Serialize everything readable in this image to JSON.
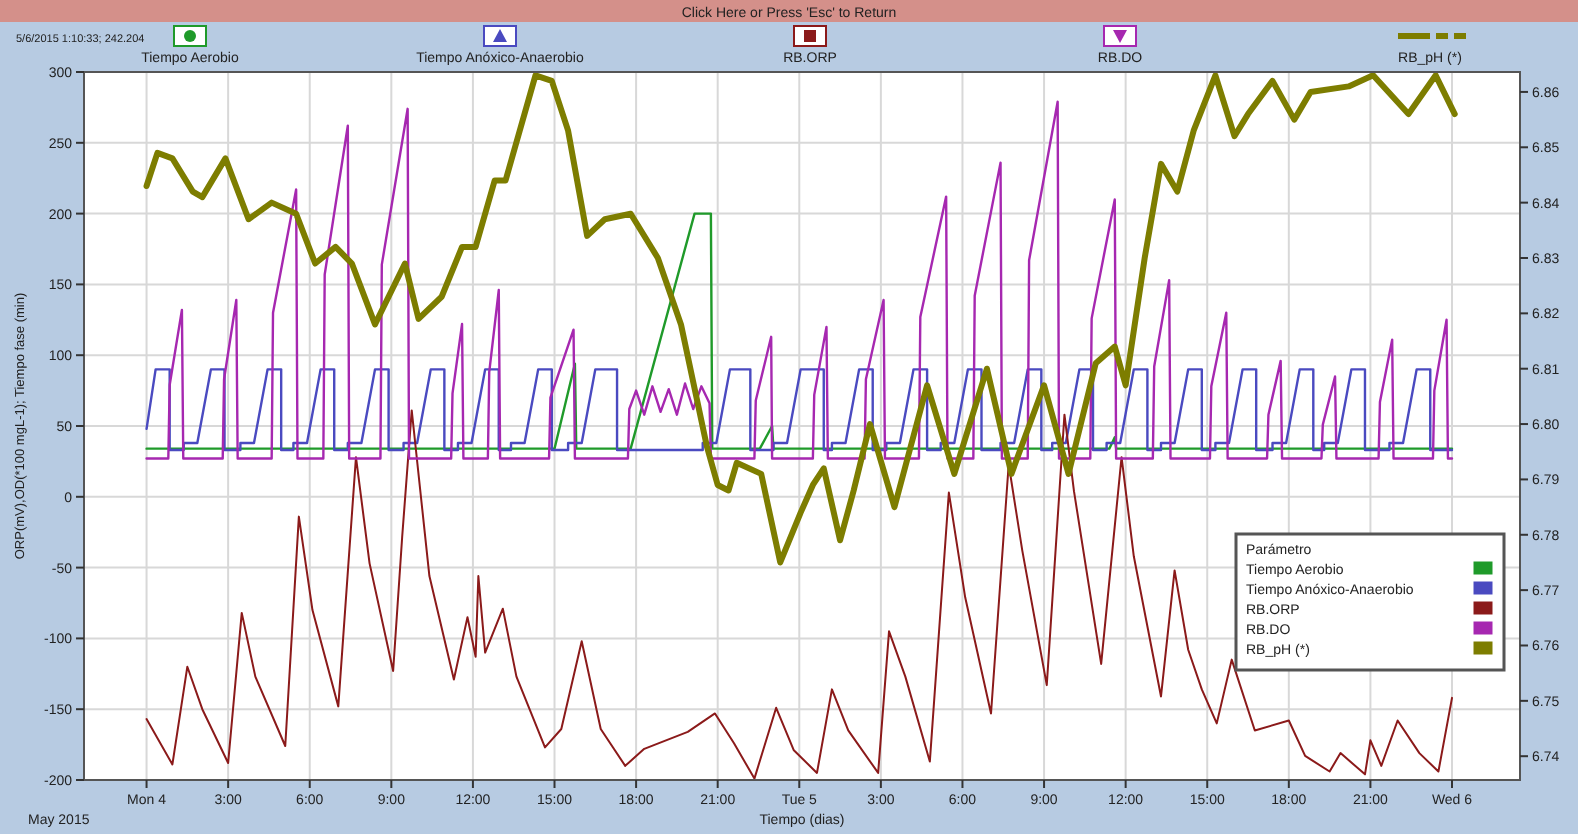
{
  "chart_data": {
    "type": "line",
    "title": "Click Here or Press 'Esc' to Return",
    "xlabel": "Tiempo (dias)",
    "ylabel": "ORP(mV),OD(*100 mgL-1); Tiempo fase (min)",
    "legend_title": "Parámetro",
    "legend": "right",
    "grid": true,
    "annotations": [
      "5/6/2015 1:10:33; 242.204",
      "May 2015"
    ],
    "xlim": [
      "2015-05-03T21:42",
      "2015-05-06T02:30"
    ],
    "xticks": [
      {
        "value": "2015-05-04T00:00",
        "label": "Mon 4"
      },
      {
        "value": "2015-05-04T03:00",
        "label": "3:00"
      },
      {
        "value": "2015-05-04T06:00",
        "label": "6:00"
      },
      {
        "value": "2015-05-04T09:00",
        "label": "9:00"
      },
      {
        "value": "2015-05-04T12:00",
        "label": "12:00"
      },
      {
        "value": "2015-05-04T15:00",
        "label": "15:00"
      },
      {
        "value": "2015-05-04T18:00",
        "label": "18:00"
      },
      {
        "value": "2015-05-04T21:00",
        "label": "21:00"
      },
      {
        "value": "2015-05-05T00:00",
        "label": "Tue 5"
      },
      {
        "value": "2015-05-05T03:00",
        "label": "3:00"
      },
      {
        "value": "2015-05-05T06:00",
        "label": "6:00"
      },
      {
        "value": "2015-05-05T09:00",
        "label": "9:00"
      },
      {
        "value": "2015-05-05T12:00",
        "label": "12:00"
      },
      {
        "value": "2015-05-05T15:00",
        "label": "15:00"
      },
      {
        "value": "2015-05-05T18:00",
        "label": "18:00"
      },
      {
        "value": "2015-05-05T21:00",
        "label": "21:00"
      },
      {
        "value": "2015-05-06T00:00",
        "label": "Wed 6"
      }
    ],
    "ylim": [
      -200,
      300
    ],
    "yticks": [
      -200,
      -150,
      -100,
      -50,
      0,
      50,
      100,
      150,
      200,
      250,
      300
    ],
    "y2lim": [
      6.7357,
      6.8636
    ],
    "y2ticks": [
      6.74,
      6.75,
      6.76,
      6.77,
      6.78,
      6.79,
      {
        "value": 6.8,
        "label": "6.80"
      },
      6.81,
      6.82,
      6.83,
      6.84,
      6.85,
      6.86
    ],
    "series": [
      {
        "name": "Tiempo Aerobio",
        "color": "#1f9a2a",
        "x": [
          "2015-05-04T00:00",
          "2015-05-04T15:00",
          "2015-05-04T15:45",
          "2015-05-04T15:48",
          "2015-05-04T17:48",
          "2015-05-04T20:09",
          "2015-05-04T20:45",
          "2015-05-04T20:48",
          "2015-05-04T22:33",
          "2015-05-04T23:00",
          "2015-05-04T23:03",
          "2015-05-05T11:24",
          "2015-05-05T11:36",
          "2015-05-05T11:39",
          "2015-05-06T00:00"
        ],
        "values": [
          34,
          34,
          94,
          34,
          34,
          200,
          200,
          34,
          34,
          50,
          34,
          34,
          42,
          34,
          34
        ]
      },
      {
        "name": "Tiempo Anóxico-Anaerobio",
        "color": "#4a4ac0",
        "x": [
          "2015-05-04T00:00",
          "2015-05-04T00:20",
          "2015-05-04T00:51",
          "2015-05-04T00:51",
          "2015-05-04T01:22",
          "2015-05-04T01:22",
          "2015-05-04T01:52",
          "2015-05-04T02:22",
          "2015-05-04T02:52",
          "2015-05-04T02:52",
          "2015-05-04T03:27",
          "2015-05-04T03:27",
          "2015-05-04T03:57",
          "2015-05-04T04:27",
          "2015-05-04T04:57",
          "2015-05-04T04:57",
          "2015-05-04T05:24",
          "2015-05-04T05:24",
          "2015-05-04T05:54",
          "2015-05-04T06:24",
          "2015-05-04T06:54",
          "2015-05-04T06:54",
          "2015-05-04T07:24",
          "2015-05-04T07:24",
          "2015-05-04T07:54",
          "2015-05-04T08:24",
          "2015-05-04T08:54",
          "2015-05-04T08:54",
          "2015-05-04T09:27",
          "2015-05-04T09:27",
          "2015-05-04T09:57",
          "2015-05-04T10:27",
          "2015-05-04T10:57",
          "2015-05-04T10:57",
          "2015-05-04T11:27",
          "2015-05-04T11:27",
          "2015-05-04T11:57",
          "2015-05-04T12:27",
          "2015-05-04T12:57",
          "2015-05-04T12:57",
          "2015-05-04T13:24",
          "2015-05-04T13:24",
          "2015-05-04T13:54",
          "2015-05-04T14:24",
          "2015-05-04T14:54",
          "2015-05-04T14:54",
          "2015-05-04T15:30",
          "2015-05-04T15:30",
          "2015-05-04T16:00",
          "2015-05-04T16:30",
          "2015-05-04T17:18",
          "2015-05-04T17:18",
          "2015-05-04T20:27",
          "2015-05-04T20:27",
          "2015-05-04T20:57",
          "2015-05-04T21:27",
          "2015-05-04T22:12",
          "2015-05-04T22:12",
          "2015-05-04T23:03",
          "2015-05-04T23:03",
          "2015-05-04T23:33",
          "2015-05-05T00:03",
          "2015-05-05T00:54",
          "2015-05-05T00:54",
          "2015-05-05T01:12",
          "2015-05-05T01:12",
          "2015-05-05T01:42",
          "2015-05-05T02:12",
          "2015-05-05T02:42",
          "2015-05-05T02:42",
          "2015-05-05T03:12",
          "2015-05-05T03:12",
          "2015-05-05T03:42",
          "2015-05-05T04:12",
          "2015-05-05T04:42",
          "2015-05-05T04:42",
          "2015-05-05T05:12",
          "2015-05-05T05:12",
          "2015-05-05T05:42",
          "2015-05-05T06:12",
          "2015-05-05T06:42",
          "2015-05-05T06:42",
          "2015-05-05T07:24",
          "2015-05-05T07:24",
          "2015-05-05T07:54",
          "2015-05-05T08:24",
          "2015-05-05T08:54",
          "2015-05-05T08:54",
          "2015-05-05T09:18",
          "2015-05-05T09:18",
          "2015-05-05T09:48",
          "2015-05-05T10:18",
          "2015-05-05T10:48",
          "2015-05-05T10:48",
          "2015-05-05T11:18",
          "2015-05-05T11:18",
          "2015-05-05T11:48",
          "2015-05-05T12:18",
          "2015-05-05T12:48",
          "2015-05-05T12:48",
          "2015-05-05T13:18",
          "2015-05-05T13:18",
          "2015-05-05T13:48",
          "2015-05-05T14:18",
          "2015-05-05T14:48",
          "2015-05-05T14:48",
          "2015-05-05T15:18",
          "2015-05-05T15:18",
          "2015-05-05T15:48",
          "2015-05-05T16:18",
          "2015-05-05T16:48",
          "2015-05-05T16:48",
          "2015-05-05T17:24",
          "2015-05-05T17:24",
          "2015-05-05T17:54",
          "2015-05-05T18:24",
          "2015-05-05T18:54",
          "2015-05-05T18:54",
          "2015-05-05T19:18",
          "2015-05-05T19:18",
          "2015-05-05T19:48",
          "2015-05-05T20:18",
          "2015-05-05T20:48",
          "2015-05-05T20:48",
          "2015-05-05T21:42",
          "2015-05-05T21:42",
          "2015-05-05T22:12",
          "2015-05-05T22:42",
          "2015-05-05T23:12",
          "2015-05-05T23:12",
          "2015-05-06T00:00"
        ],
        "values": [
          48,
          90,
          90,
          33,
          33,
          38,
          38,
          90,
          90,
          33,
          33,
          38,
          38,
          90,
          90,
          33,
          33,
          38,
          38,
          90,
          90,
          33,
          33,
          38,
          38,
          90,
          90,
          33,
          33,
          38,
          38,
          90,
          90,
          33,
          33,
          38,
          38,
          90,
          90,
          33,
          33,
          38,
          38,
          90,
          90,
          33,
          33,
          38,
          38,
          90,
          90,
          33,
          33,
          38,
          38,
          90,
          90,
          33,
          33,
          38,
          38,
          90,
          90,
          33,
          33,
          38,
          38,
          90,
          90,
          33,
          33,
          38,
          38,
          90,
          90,
          33,
          33,
          38,
          38,
          90,
          90,
          33,
          33,
          38,
          38,
          90,
          90,
          33,
          33,
          38,
          38,
          90,
          90,
          33,
          33,
          38,
          38,
          90,
          90,
          33,
          33,
          38,
          38,
          90,
          90,
          33,
          33,
          38,
          38,
          90,
          90,
          33,
          33,
          38,
          38,
          90,
          90,
          33,
          33,
          38,
          38,
          90,
          90,
          33,
          33,
          38,
          38,
          90,
          90,
          33,
          33
        ]
      },
      {
        "name": "RB.ORP",
        "color": "#8b1a1a",
        "x": [
          "2015-05-04T00:00",
          "2015-05-04T00:57",
          "2015-05-04T01:30",
          "2015-05-04T02:03",
          "2015-05-04T03:00",
          "2015-05-04T03:30",
          "2015-05-04T04:00",
          "2015-05-04T05:06",
          "2015-05-04T05:36",
          "2015-05-04T06:06",
          "2015-05-04T07:03",
          "2015-05-04T07:42",
          "2015-05-04T08:12",
          "2015-05-04T09:04",
          "2015-05-04T09:24",
          "2015-05-04T09:45",
          "2015-05-04T10:24",
          "2015-05-04T11:18",
          "2015-05-04T11:48",
          "2015-05-04T12:06",
          "2015-05-04T12:12",
          "2015-05-04T12:27",
          "2015-05-04T13:06",
          "2015-05-04T13:36",
          "2015-05-04T14:39",
          "2015-05-04T15:15",
          "2015-05-04T16:00",
          "2015-05-04T16:42",
          "2015-05-04T17:36",
          "2015-05-04T18:18",
          "2015-05-04T19:54",
          "2015-05-04T20:54",
          "2015-05-04T21:36",
          "2015-05-04T22:21",
          "2015-05-04T23:09",
          "2015-05-04T23:48",
          "2015-05-05T00:39",
          "2015-05-05T01:12",
          "2015-05-05T01:48",
          "2015-05-05T02:54",
          "2015-05-05T03:18",
          "2015-05-05T03:54",
          "2015-05-05T04:48",
          "2015-05-05T05:30",
          "2015-05-05T06:06",
          "2015-05-05T07:03",
          "2015-05-05T07:42",
          "2015-05-05T08:12",
          "2015-05-05T09:06",
          "2015-05-05T09:45",
          "2015-05-05T10:06",
          "2015-05-05T11:06",
          "2015-05-05T11:51",
          "2015-05-05T12:18",
          "2015-05-05T13:18",
          "2015-05-05T13:48",
          "2015-05-05T14:18",
          "2015-05-05T14:48",
          "2015-05-05T15:21",
          "2015-05-05T15:54",
          "2015-05-05T16:45",
          "2015-05-05T18:00",
          "2015-05-05T18:36",
          "2015-05-05T19:30",
          "2015-05-05T19:54",
          "2015-05-05T20:48",
          "2015-05-05T21:00",
          "2015-05-05T21:24",
          "2015-05-05T22:00",
          "2015-05-05T22:48",
          "2015-05-05T23:30",
          "2015-05-06T00:00"
        ],
        "values": [
          -157,
          -189,
          -120,
          -150,
          -188,
          -82,
          -127,
          -176,
          -14,
          -80,
          -148,
          28,
          -47,
          -123,
          -28,
          61,
          -56,
          -129,
          -85,
          -113,
          -56,
          -110,
          -79,
          -127,
          -177,
          -164,
          -102,
          -164,
          -190,
          -178,
          -166,
          -153,
          -174,
          -199,
          -149,
          -179,
          -195,
          -136,
          -165,
          -195,
          -95,
          -127,
          -187,
          3,
          -71,
          -153,
          23,
          -38,
          -133,
          58,
          4,
          -118,
          28,
          -42,
          -141,
          -52,
          -108,
          -136,
          -160,
          -115,
          -165,
          -158,
          -183,
          -194,
          -181,
          -196,
          -172,
          -190,
          -158,
          -181,
          -194,
          -142
        ]
      },
      {
        "name": "RB.DO",
        "color": "#a628b0",
        "x": [
          "2015-05-04T00:00",
          "2015-05-04T00:48",
          "2015-05-04T00:51",
          "2015-05-04T01:18",
          "2015-05-04T01:21",
          "2015-05-04T02:48",
          "2015-05-04T02:51",
          "2015-05-04T03:18",
          "2015-05-04T03:21",
          "2015-05-04T04:36",
          "2015-05-04T04:39",
          "2015-05-04T05:30",
          "2015-05-04T05:33",
          "2015-05-04T06:30",
          "2015-05-04T06:33",
          "2015-05-04T07:24",
          "2015-05-04T07:27",
          "2015-05-04T08:36",
          "2015-05-04T08:39",
          "2015-05-04T09:36",
          "2015-05-04T09:39",
          "2015-05-04T11:12",
          "2015-05-04T11:15",
          "2015-05-04T11:36",
          "2015-05-04T11:39",
          "2015-05-04T12:33",
          "2015-05-04T12:36",
          "2015-05-04T12:57",
          "2015-05-04T13:00",
          "2015-05-04T14:48",
          "2015-05-04T14:51",
          "2015-05-04T15:42",
          "2015-05-04T15:45",
          "2015-05-04T17:42",
          "2015-05-04T17:45",
          "2015-05-04T18:00",
          "2015-05-04T18:18",
          "2015-05-04T18:36",
          "2015-05-04T18:54",
          "2015-05-04T19:12",
          "2015-05-04T19:30",
          "2015-05-04T19:48",
          "2015-05-04T20:06",
          "2015-05-04T20:24",
          "2015-05-04T20:42",
          "2015-05-04T20:45",
          "2015-05-04T22:21",
          "2015-05-04T22:24",
          "2015-05-04T22:58",
          "2015-05-04T23:00",
          "2015-05-05T00:30",
          "2015-05-05T00:33",
          "2015-05-05T01:00",
          "2015-05-05T01:03",
          "2015-05-05T02:24",
          "2015-05-05T02:27",
          "2015-05-05T03:06",
          "2015-05-05T03:09",
          "2015-05-05T04:24",
          "2015-05-05T04:27",
          "2015-05-05T05:24",
          "2015-05-05T05:27",
          "2015-05-05T06:24",
          "2015-05-05T06:27",
          "2015-05-05T07:24",
          "2015-05-05T07:27",
          "2015-05-05T08:24",
          "2015-05-05T08:27",
          "2015-05-05T09:30",
          "2015-05-05T09:33",
          "2015-05-05T10:42",
          "2015-05-05T10:45",
          "2015-05-05T11:36",
          "2015-05-05T11:39",
          "2015-05-05T13:00",
          "2015-05-05T13:03",
          "2015-05-05T13:36",
          "2015-05-05T13:39",
          "2015-05-05T15:06",
          "2015-05-05T15:09",
          "2015-05-05T15:42",
          "2015-05-05T15:45",
          "2015-05-05T17:12",
          "2015-05-05T17:15",
          "2015-05-05T17:42",
          "2015-05-05T17:45",
          "2015-05-05T19:12",
          "2015-05-05T19:15",
          "2015-05-05T19:42",
          "2015-05-05T19:45",
          "2015-05-05T21:18",
          "2015-05-05T21:21",
          "2015-05-05T21:48",
          "2015-05-05T21:51",
          "2015-05-05T23:18",
          "2015-05-05T23:21",
          "2015-05-05T23:48",
          "2015-05-05T23:51",
          "2015-05-06T00:00"
        ],
        "values": [
          27,
          27,
          79,
          132,
          27,
          27,
          83,
          139,
          27,
          27,
          130,
          217,
          27,
          27,
          157,
          262,
          27,
          27,
          164,
          274,
          27,
          27,
          73,
          122,
          27,
          27,
          88,
          146,
          27,
          27,
          70,
          118,
          27,
          27,
          62,
          75,
          58,
          78,
          60,
          76,
          58,
          80,
          62,
          78,
          66,
          27,
          27,
          68,
          113,
          27,
          27,
          72,
          120,
          27,
          27,
          83,
          139,
          27,
          27,
          127,
          212,
          27,
          27,
          142,
          236,
          27,
          27,
          167,
          279,
          27,
          27,
          126,
          210,
          27,
          27,
          92,
          153,
          27,
          27,
          78,
          130,
          27,
          27,
          58,
          96,
          27,
          27,
          51,
          85,
          27,
          27,
          67,
          111,
          27,
          27,
          75,
          125,
          27,
          27
        ]
      },
      {
        "name": "RB_pH (*)",
        "color": "#7d7d00",
        "axis": "y2",
        "x": [
          "2015-05-04T00:00",
          "2015-05-04T00:24",
          "2015-05-04T00:57",
          "2015-05-04T01:42",
          "2015-05-04T02:03",
          "2015-05-04T02:54",
          "2015-05-04T03:45",
          "2015-05-04T04:36",
          "2015-05-04T05:30",
          "2015-05-04T06:12",
          "2015-05-04T06:57",
          "2015-05-04T07:33",
          "2015-05-04T08:24",
          "2015-05-04T09:30",
          "2015-05-04T10:00",
          "2015-05-04T10:51",
          "2015-05-04T11:36",
          "2015-05-04T12:06",
          "2015-05-04T12:48",
          "2015-05-04T13:12",
          "2015-05-04T14:18",
          "2015-05-04T14:54",
          "2015-05-04T15:30",
          "2015-05-04T16:12",
          "2015-05-04T16:51",
          "2015-05-04T17:48",
          "2015-05-04T18:48",
          "2015-05-04T19:39",
          "2015-05-04T20:36",
          "2015-05-04T21:00",
          "2015-05-04T21:24",
          "2015-05-04T21:42",
          "2015-05-04T22:36",
          "2015-05-04T23:18",
          "2015-05-05T00:03",
          "2015-05-05T00:30",
          "2015-05-05T00:54",
          "2015-05-05T01:30",
          "2015-05-05T02:00",
          "2015-05-05T02:36",
          "2015-05-05T03:30",
          "2015-05-05T04:42",
          "2015-05-05T05:42",
          "2015-05-05T06:54",
          "2015-05-05T07:48",
          "2015-05-05T09:00",
          "2015-05-05T09:54",
          "2015-05-05T10:54",
          "2015-05-05T11:36",
          "2015-05-05T12:00",
          "2015-05-05T12:42",
          "2015-05-05T13:18",
          "2015-05-05T13:54",
          "2015-05-05T14:30",
          "2015-05-05T15:18",
          "2015-05-05T16:00",
          "2015-05-05T16:30",
          "2015-05-05T17:24",
          "2015-05-05T18:12",
          "2015-05-05T18:48",
          "2015-05-05T20:12",
          "2015-05-05T21:06",
          "2015-05-05T22:24",
          "2015-05-05T23:24",
          "2015-05-06T00:06"
        ],
        "values": [
          6.843,
          6.849,
          6.848,
          6.842,
          6.841,
          6.848,
          6.837,
          6.84,
          6.838,
          6.829,
          6.832,
          6.829,
          6.818,
          6.829,
          6.819,
          6.823,
          6.832,
          6.832,
          6.844,
          6.844,
          6.863,
          6.862,
          6.853,
          6.834,
          6.837,
          6.838,
          6.83,
          6.818,
          6.796,
          6.789,
          6.788,
          6.793,
          6.791,
          6.775,
          6.784,
          6.789,
          6.792,
          6.779,
          6.788,
          6.8,
          6.785,
          6.807,
          6.791,
          6.81,
          6.791,
          6.807,
          6.791,
          6.811,
          6.814,
          6.807,
          6.83,
          6.847,
          6.842,
          6.853,
          6.863,
          6.852,
          6.856,
          6.862,
          6.855,
          6.86,
          6.861,
          6.863,
          6.856,
          6.863,
          6.856
        ]
      }
    ]
  }
}
